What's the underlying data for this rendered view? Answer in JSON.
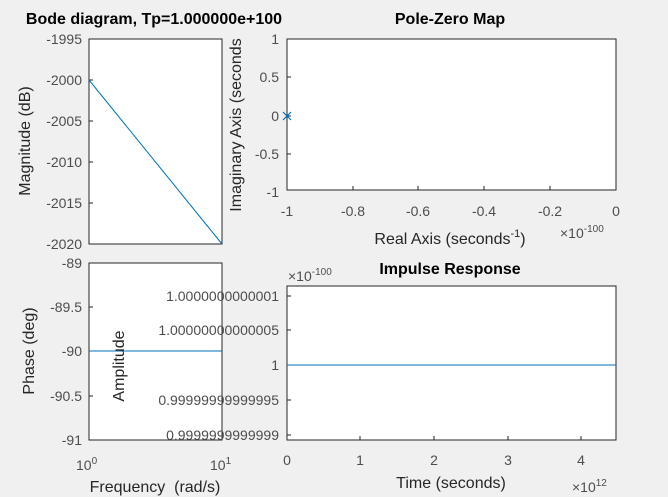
{
  "chart_data": [
    {
      "id": "bode-magnitude",
      "type": "line",
      "title": "Bode diagram, Tp=1.000000e+100",
      "ylabel": "Magnitude (dB)",
      "xscale": "log",
      "xlim": [
        1,
        10
      ],
      "ylim": [
        -2020,
        -1995
      ],
      "yticks": [
        "-1995",
        "-2000",
        "-2005",
        "-2010",
        "-2015",
        "-2020"
      ],
      "grid": false,
      "series": [
        {
          "x": [
            1,
            10
          ],
          "y": [
            -2000,
            -2020
          ]
        }
      ]
    },
    {
      "id": "bode-phase",
      "type": "line",
      "xlabel": "Frequency  (rad/s)",
      "ylabel": "Phase (deg)",
      "xscale": "log",
      "xlim": [
        1,
        10
      ],
      "ylim": [
        -91,
        -89
      ],
      "xticks": [
        {
          "base": "10",
          "exp": "0"
        },
        {
          "base": "10",
          "exp": "1"
        }
      ],
      "yticks": [
        "-89",
        "-89.5",
        "-90",
        "-90.5",
        "-91"
      ],
      "grid": false,
      "series": [
        {
          "x": [
            1,
            10
          ],
          "y": [
            -90,
            -90
          ]
        }
      ]
    },
    {
      "id": "pole-zero",
      "type": "scatter",
      "title": "Pole-Zero Map",
      "xlabel_base": "Real Axis (seconds",
      "xlabel_exp": "-1",
      "xlabel_close": ")",
      "ylabel": "Imaginary Axis (seconds",
      "xlim": [
        -1,
        0
      ],
      "ylim": [
        -1,
        1
      ],
      "xticks": [
        "-1",
        "-0.8",
        "-0.6",
        "-0.4",
        "-0.2",
        "0"
      ],
      "yticks": [
        "1",
        "0.5",
        "0",
        "-0.5",
        "-1"
      ],
      "x_multiplier": {
        "base": "×10",
        "exp": "-100"
      },
      "grid": false,
      "poles": [
        {
          "x": -1,
          "y": 0
        }
      ]
    },
    {
      "id": "impulse",
      "type": "line",
      "title": "Impulse Response",
      "xlabel": "Time (seconds)",
      "ylabel": "Amplitude",
      "xlim": [
        0,
        4.45
      ],
      "ylim": [
        0.99999999999999,
        1.00000000000001
      ],
      "xticks": [
        "0",
        "1",
        "2",
        "3",
        "4"
      ],
      "yticks": [
        "1.0000000000001",
        "1.00000000000005",
        "1",
        "0.99999999999995",
        "0.9999999999999"
      ],
      "x_multiplier": {
        "base": "×10",
        "exp": "12"
      },
      "y_multiplier": {
        "base": "×10",
        "exp": "-100"
      },
      "grid": false,
      "series": [
        {
          "x": [
            0,
            4.45
          ],
          "y": [
            1,
            1
          ]
        }
      ]
    }
  ]
}
